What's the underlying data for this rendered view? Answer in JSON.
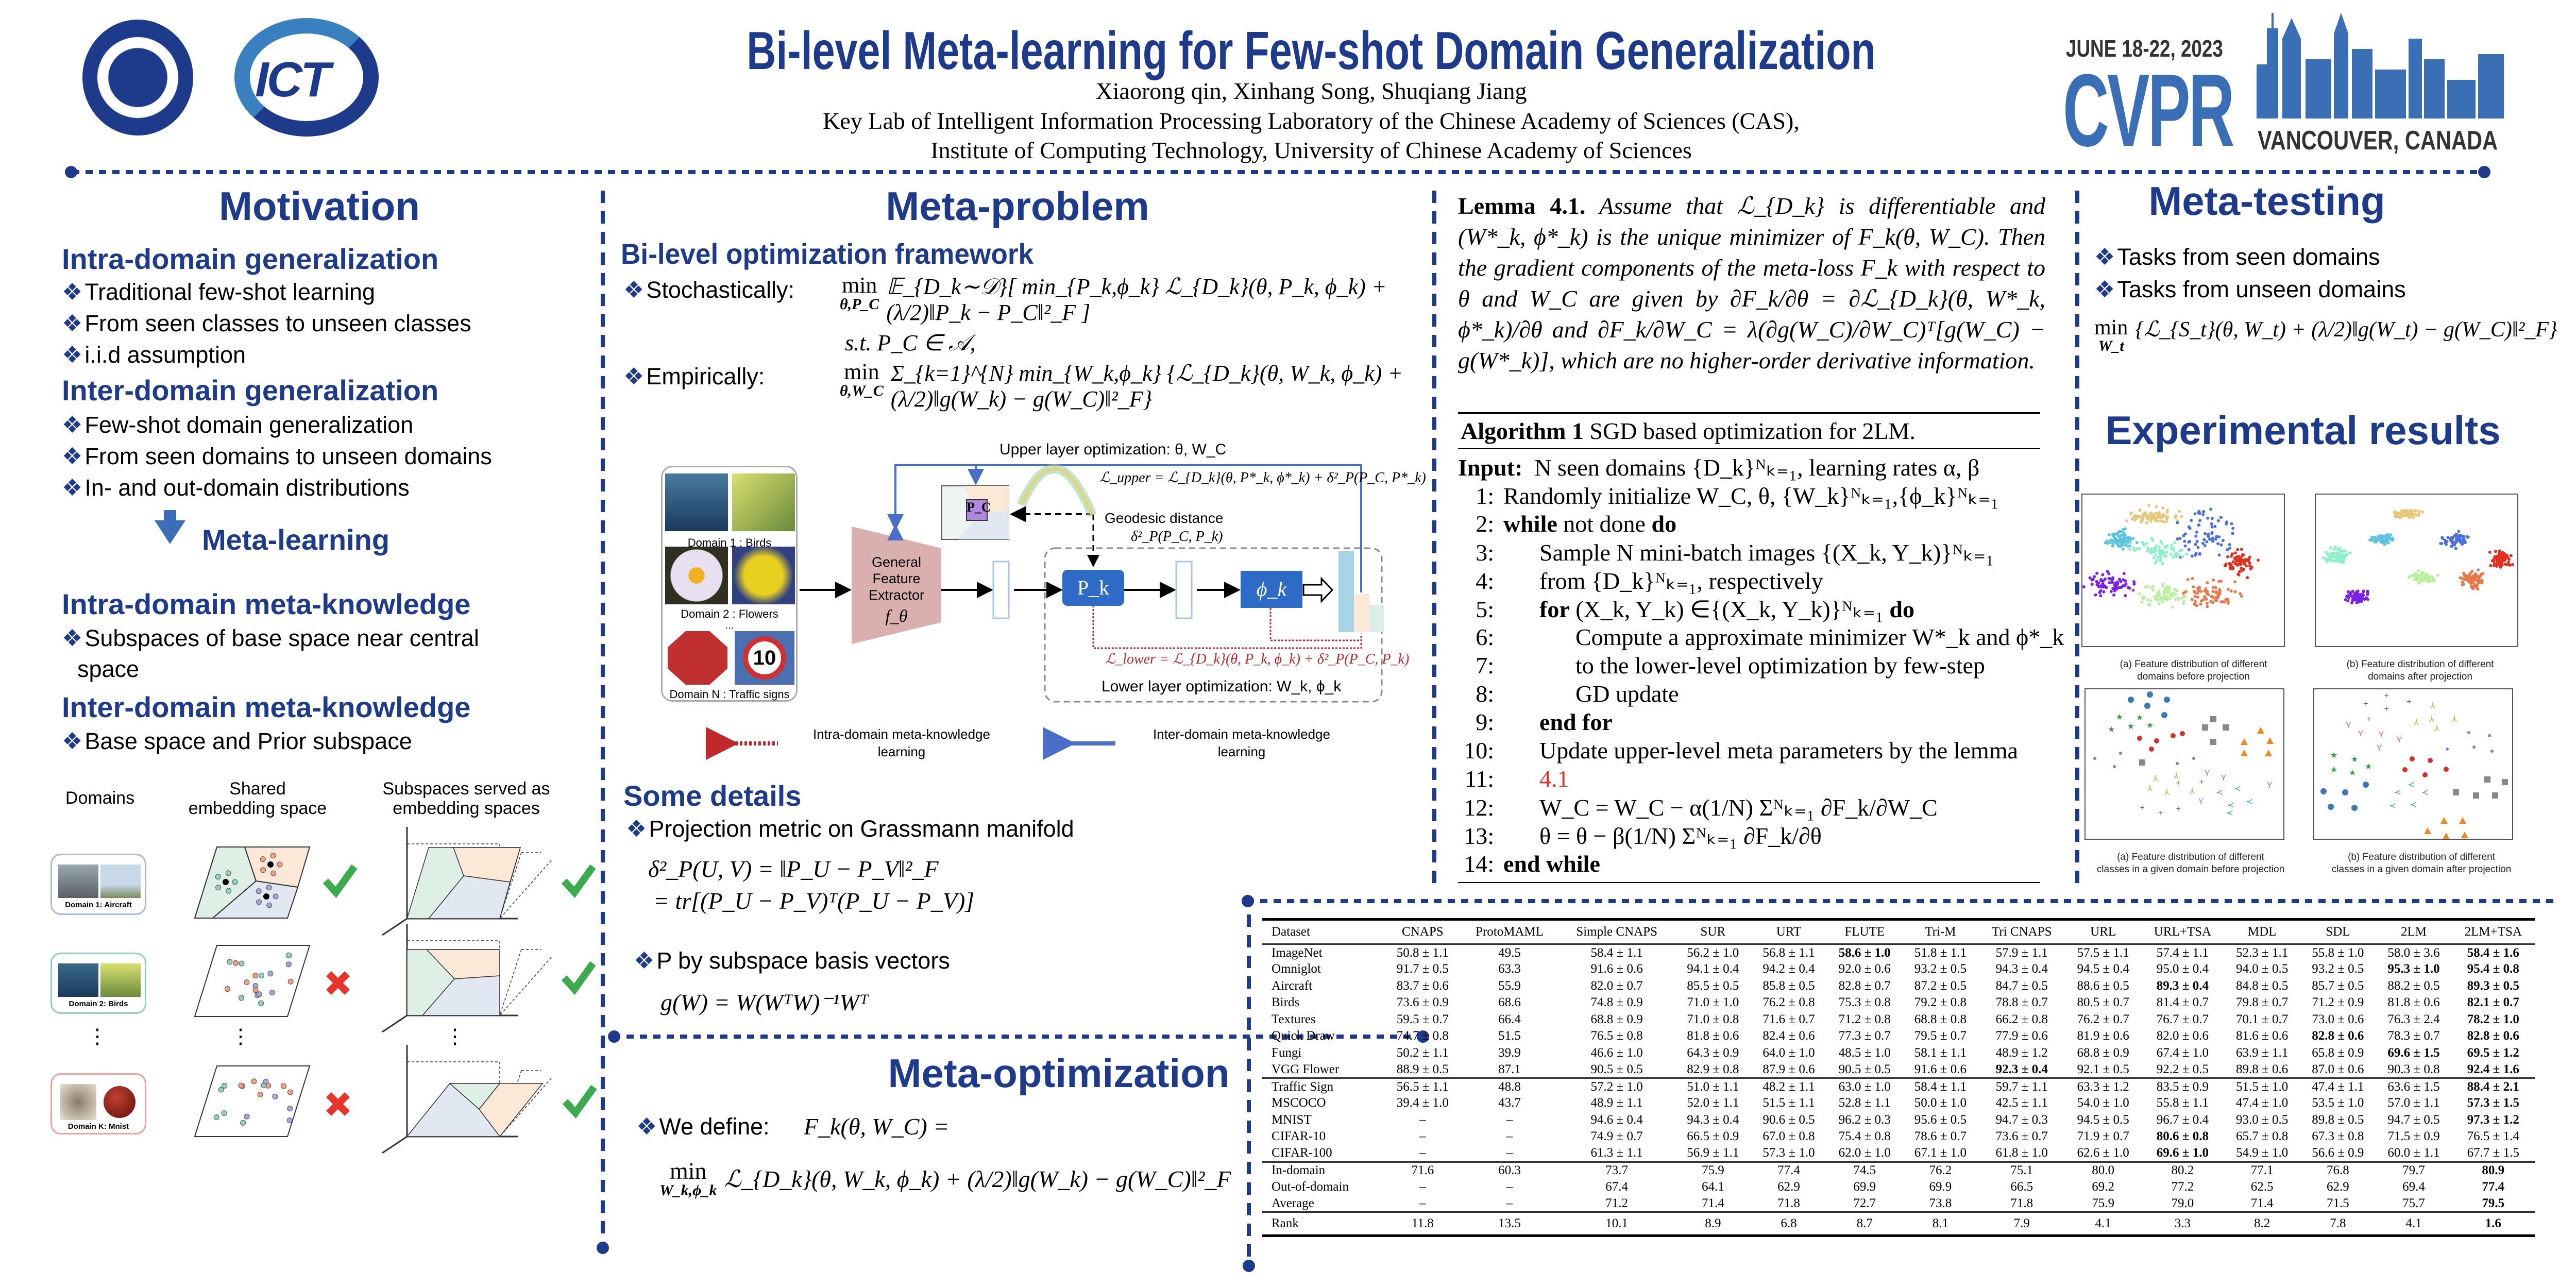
{
  "header": {
    "title": "Bi-level Meta-learning for Few-shot Domain Generalization",
    "authors": "Xiaorong qin, Xinhang Song, Shuqiang Jiang",
    "affiliation_1": "Key Lab of Intelligent Information Processing Laboratory of the Chinese Academy of Sciences (CAS),",
    "affiliation_2": "Institute of Computing Technology, University of Chinese Academy of Sciences",
    "logo_left_1": "Chinese Academy of Sciences",
    "logo_left_2": "ICT",
    "conference": {
      "dates": "JUNE 18-22, 2023",
      "name": "CVPR",
      "location": "VANCOUVER, CANADA",
      "color": "#3a6fb5"
    }
  },
  "colors": {
    "heading": "#1e3a8a",
    "check": "#3daa4d",
    "cross": "#e8352b",
    "pk_box": "#2e6bc6",
    "extractor": "#d9b0ad",
    "lower_loss": "#c0282b"
  },
  "motivation": {
    "title": "Motivation",
    "intra_title": "Intra-domain generalization",
    "intra_items": [
      "Traditional few-shot learning",
      "From seen classes to unseen classes",
      "i.i.d assumption"
    ],
    "inter_title": "Inter-domain generalization",
    "inter_items": [
      "Few-shot domain generalization",
      "From seen domains to unseen domains",
      "In- and out-domain distributions"
    ],
    "arrow_label": "Meta-learning",
    "intra_know_title": "Intra-domain meta-knowledge",
    "intra_know_items": [
      "Subspaces of base space near central",
      "space"
    ],
    "inter_know_title": "Inter-domain meta-knowledge",
    "inter_know_items": [
      "Base space and Prior subspace"
    ],
    "figure": {
      "col_domains": "Domains",
      "col_shared_1": "Shared",
      "col_shared_2": "embedding space",
      "col_sub_1": "Subspaces served as",
      "col_sub_2": "embedding spaces",
      "domains": [
        "Domain 1: Aircraft",
        "Domain 2: Birds",
        "Domain K: Mnist"
      ],
      "shared_result": [
        "check",
        "cross",
        "cross"
      ],
      "subspace_result": [
        "check",
        "check",
        "check"
      ],
      "ellipsis": "⋮"
    }
  },
  "meta_problem": {
    "title": "Meta-problem",
    "framework_title": "Bi-level optimization framework",
    "stochastic_label": "Stochastically:",
    "stochastic": {
      "min_sub": "θ,P_C",
      "body": "𝔼_{D_k∼𝒟}[ min_{P_k,ϕ_k} ℒ_{D_k}(θ, P_k, ϕ_k) + (λ/2)‖P_k − P_C‖²_F ]"
    },
    "constraint": "s.t. P_C ∈ 𝒜,",
    "empirical_label": "Empirically:",
    "empirical": {
      "min_sub": "θ,W_C",
      "body": "Σ_{k=1}^{N} min_{W_k,ϕ_k} {ℒ_{D_k}(θ, W_k, ϕ_k) + (λ/2)‖g(W_k) − g(W_C)‖²_F}"
    },
    "diagram": {
      "upper_label": "Upper layer optimization: θ, W_C",
      "domain_labels": [
        "Domain 1 : Birds",
        "Domain 2 : Flowers",
        "...",
        "Domain N : Traffic signs"
      ],
      "extractor_1": "General",
      "extractor_2": "Feature",
      "extractor_3": "Extractor",
      "extractor_sym": "f_θ",
      "pc": "P_C",
      "pk": "P_k",
      "phik": "ϕ_k",
      "upper_loss": "ℒ_upper = ℒ_{D_k}(θ, P*_k, ϕ*_k) + δ²_P(P_C, P*_k)",
      "geodesic_1": "Geodesic distance",
      "geodesic_2": "δ²_P(P_C, P_k)",
      "lower_loss": "ℒ_lower = ℒ_{D_k}(θ, P_k, ϕ_k) + δ²_P(P_C, P_k)",
      "lower_label": "Lower layer optimization: W_k, ϕ_k",
      "legend_intra_1": "Intra-domain meta-knowledge",
      "legend_intra_2": "learning",
      "legend_inter_1": "Inter-domain meta-knowledge",
      "legend_inter_2": "learning"
    },
    "details_title": "Some details",
    "projection_label": "Projection metric on Grassmann manifold",
    "projection_eq_1": "δ²_P(U, V) = ‖P_U − P_V‖²_F",
    "projection_eq_2": "= tr[(P_U − P_V)ᵀ(P_U − P_V)]",
    "basis_label": "P by subspace basis vectors",
    "basis_eq": "g(W) = W(WᵀW)⁻¹Wᵀ"
  },
  "meta_optimization": {
    "title": "Meta-optimization",
    "define_label": "We define:",
    "define_lhs": "F_k(θ, W_C) =",
    "define": {
      "min_sub": "W_k,ϕ_k",
      "body": "ℒ_{D_k}(θ, W_k, ϕ_k) + (λ/2)‖g(W_k) − g(W_C)‖²_F"
    }
  },
  "lemma": {
    "label": "Lemma 4.1.",
    "text": "Assume that ℒ_{D_k} is differentiable and (W*_k, ϕ*_k) is the unique minimizer of F_k(θ, W_C). Then the gradient components of the meta-loss F_k with respect to θ and W_C are given by ∂F_k/∂θ = ∂ℒ_{D_k}(θ, W*_k, ϕ*_k)/∂θ and ∂F_k/∂W_C = λ(∂g(W_C)/∂W_C)ᵀ[g(W_C) − g(W*_k)], which are no higher-order derivative information."
  },
  "algorithm": {
    "label": "Algorithm 1",
    "caption": "SGD based optimization for 2LM.",
    "lines": [
      {
        "num": "",
        "segs": [
          {
            "t": "Input:",
            "b": true
          },
          {
            "t": "  N seen domains {D_k}ᴺₖ₌₁, learning rates α, β"
          }
        ]
      },
      {
        "num": "1:",
        "segs": [
          {
            "t": "Randomly initialize W_C, θ, {W_k}ᴺₖ₌₁,{ϕ_k}ᴺₖ₌₁"
          }
        ]
      },
      {
        "num": "2:",
        "segs": [
          {
            "t": "while",
            "b": true
          },
          {
            "t": " not done "
          },
          {
            "t": "do",
            "b": true
          }
        ]
      },
      {
        "num": "3:",
        "segs": [
          {
            "t": "Sample N mini-batch images {(X_k, Y_k)}ᴺₖ₌₁"
          }
        ]
      },
      {
        "num": "4:",
        "segs": [
          {
            "t": "from {D_k}ᴺₖ₌₁, respectively"
          }
        ]
      },
      {
        "num": "5:",
        "segs": [
          {
            "t": "for",
            "b": true
          },
          {
            "t": " (X_k, Y_k) ∈{(X_k, Y_k)}ᴺₖ₌₁ "
          },
          {
            "t": "do",
            "b": true
          }
        ]
      },
      {
        "num": "6:",
        "segs": [
          {
            "t": "Compute a approximate minimizer W*_k and ϕ*_k"
          }
        ]
      },
      {
        "num": "7:",
        "segs": [
          {
            "t": "to the lower-level optimization by few-step"
          }
        ]
      },
      {
        "num": "8:",
        "segs": [
          {
            "t": "GD update"
          }
        ]
      },
      {
        "num": "9:",
        "segs": [
          {
            "t": "end for",
            "b": true
          }
        ]
      },
      {
        "num": "10:",
        "segs": [
          {
            "t": "Update upper-level meta parameters by the lemma"
          }
        ]
      },
      {
        "num": "11:",
        "segs": [
          {
            "t": "4.1",
            "r": true
          }
        ]
      },
      {
        "num": "12:",
        "segs": [
          {
            "t": "W_C = W_C − α(1/N) Σᴺₖ₌₁ ∂F_k/∂W_C"
          }
        ]
      },
      {
        "num": "13:",
        "segs": [
          {
            "t": "θ = θ − β(1/N) Σᴺₖ₌₁ ∂F_k/∂θ"
          }
        ]
      },
      {
        "num": "14:",
        "segs": [
          {
            "t": "end while",
            "b": true
          }
        ]
      }
    ]
  },
  "meta_testing": {
    "title": "Meta-testing",
    "items": [
      "Tasks from seen domains",
      "Tasks from unseen domains"
    ],
    "objective": {
      "min_sub": "W_t",
      "body": "{ℒ_{S_t}(θ, W_t) + (λ/2)‖g(W_t) − g(W_C)‖²_F}"
    }
  },
  "results": {
    "title": "Experimental results",
    "captions": [
      [
        "(a) Feature distribution of different",
        "domains before projection"
      ],
      [
        "(b) Feature distribution of different",
        "domains after projection"
      ],
      [
        "(a) Feature distribution of different",
        "classes in a given domain before projection"
      ],
      [
        "(b) Feature distribution of different",
        "classes in a given domain after projection"
      ]
    ],
    "domain_colors": [
      "#e8c77a",
      "#4a6fe0",
      "#5cc3e0",
      "#8ef0c8",
      "#e03020",
      "#7a20e8",
      "#b8f0a0",
      "#e87848"
    ]
  },
  "table": {
    "columns": [
      "Dataset",
      "CNAPS",
      "ProtoMAML",
      "Simple CNAPS",
      "SUR",
      "URT",
      "FLUTE",
      "Tri-M",
      "Tri CNAPS",
      "URL",
      "URL+TSA",
      "MDL",
      "SDL",
      "2LM",
      "2LM+TSA"
    ],
    "groups": [
      {
        "rows": [
          {
            "cells": [
              "ImageNet",
              "50.8 ± 1.1",
              "49.5",
              "58.4 ± 1.1",
              "56.2 ± 1.0",
              "56.8 ± 1.1",
              "58.6 ± 1.0",
              "51.8 ± 1.1",
              "57.9 ± 1.1",
              "57.5 ± 1.1",
              "57.4 ± 1.1",
              "52.3 ± 1.1",
              "55.8 ± 1.0",
              "58.0 ± 3.6",
              "58.4 ± 1.6"
            ],
            "bold": [
              6,
              14
            ]
          },
          {
            "cells": [
              "Omniglot",
              "91.7 ± 0.5",
              "63.3",
              "91.6 ± 0.6",
              "94.1 ± 0.4",
              "94.2 ± 0.4",
              "92.0 ± 0.6",
              "93.2 ± 0.5",
              "94.3 ± 0.4",
              "94.5 ± 0.4",
              "95.0 ± 0.4",
              "94.0 ± 0.5",
              "93.2 ± 0.5",
              "95.3 ± 1.0",
              "95.4 ± 0.8"
            ],
            "bold": [
              13,
              14
            ]
          },
          {
            "cells": [
              "Aircraft",
              "83.7 ± 0.6",
              "55.9",
              "82.0 ± 0.7",
              "85.5 ± 0.5",
              "85.8 ± 0.5",
              "82.8 ± 0.7",
              "87.2 ± 0.5",
              "84.7 ± 0.5",
              "88.6 ± 0.5",
              "89.3 ± 0.4",
              "84.8 ± 0.5",
              "85.7 ± 0.5",
              "88.2 ± 0.5",
              "89.3 ± 0.5"
            ],
            "bold": [
              10,
              14
            ]
          },
          {
            "cells": [
              "Birds",
              "73.6 ± 0.9",
              "68.6",
              "74.8 ± 0.9",
              "71.0 ± 1.0",
              "76.2 ± 0.8",
              "75.3 ± 0.8",
              "79.2 ± 0.8",
              "78.8 ± 0.7",
              "80.5 ± 0.7",
              "81.4 ± 0.7",
              "79.8 ± 0.7",
              "71.2 ± 0.9",
              "81.8 ± 0.6",
              "82.1 ± 0.7"
            ],
            "bold": [
              14
            ]
          },
          {
            "cells": [
              "Textures",
              "59.5 ± 0.7",
              "66.4",
              "68.8 ± 0.9",
              "71.0 ± 0.8",
              "71.6 ± 0.7",
              "71.2 ± 0.8",
              "68.8 ± 0.8",
              "66.2 ± 0.8",
              "76.2 ± 0.7",
              "76.7 ± 0.7",
              "70.1 ± 0.7",
              "73.0 ± 0.6",
              "76.3 ± 2.4",
              "78.2 ± 1.0"
            ],
            "bold": [
              14
            ]
          },
          {
            "cells": [
              "Quick Draw",
              "74.7 ± 0.8",
              "51.5",
              "76.5 ± 0.8",
              "81.8 ± 0.6",
              "82.4 ± 0.6",
              "77.3 ± 0.7",
              "79.5 ± 0.7",
              "77.9 ± 0.6",
              "81.9 ± 0.6",
              "82.0 ± 0.6",
              "81.6 ± 0.6",
              "82.8 ± 0.6",
              "78.3 ± 0.7",
              "82.8 ± 0.6"
            ],
            "bold": [
              12,
              14
            ]
          },
          {
            "cells": [
              "Fungi",
              "50.2 ± 1.1",
              "39.9",
              "46.6 ± 1.0",
              "64.3 ± 0.9",
              "64.0 ± 1.0",
              "48.5 ± 1.0",
              "58.1 ± 1.1",
              "48.9 ± 1.2",
              "68.8 ± 0.9",
              "67.4 ± 1.0",
              "63.9 ± 1.1",
              "65.8 ± 0.9",
              "69.6 ± 1.5",
              "69.5 ± 1.2"
            ],
            "bold": [
              13,
              14
            ]
          },
          {
            "cells": [
              "VGG Flower",
              "88.9 ± 0.5",
              "87.1",
              "90.5 ± 0.5",
              "82.9 ± 0.8",
              "87.9 ± 0.6",
              "90.5 ± 0.5",
              "91.6 ± 0.6",
              "92.3 ± 0.4",
              "92.1 ± 0.5",
              "92.2 ± 0.5",
              "89.8 ± 0.6",
              "87.0 ± 0.6",
              "90.3 ± 0.8",
              "92.4 ± 1.6"
            ],
            "bold": [
              8,
              14
            ]
          }
        ]
      },
      {
        "rows": [
          {
            "cells": [
              "Traffic Sign",
              "56.5 ± 1.1",
              "48.8",
              "57.2 ± 1.0",
              "51.0 ± 1.1",
              "48.2 ± 1.1",
              "63.0 ± 1.0",
              "58.4 ± 1.1",
              "59.7 ± 1.1",
              "63.3 ± 1.2",
              "83.5 ± 0.9",
              "51.5 ± 1.0",
              "47.4 ± 1.1",
              "63.6 ± 1.5",
              "88.4 ± 2.1"
            ],
            "bold": [
              14
            ]
          },
          {
            "cells": [
              "MSCOCO",
              "39.4 ± 1.0",
              "43.7",
              "48.9 ± 1.1",
              "52.0 ± 1.1",
              "51.5 ± 1.1",
              "52.8 ± 1.1",
              "50.0 ± 1.0",
              "42.5 ± 1.1",
              "54.0 ± 1.0",
              "55.8 ± 1.1",
              "47.4 ± 1.0",
              "53.5 ± 1.0",
              "57.0 ± 1.1",
              "57.3 ± 1.5"
            ],
            "bold": [
              14
            ]
          },
          {
            "cells": [
              "MNIST",
              "–",
              "–",
              "94.6 ± 0.4",
              "94.3 ± 0.4",
              "90.6 ± 0.5",
              "96.2 ± 0.3",
              "95.6 ± 0.5",
              "94.7 ± 0.3",
              "94.5 ± 0.5",
              "96.7 ± 0.4",
              "93.0 ± 0.5",
              "89.8 ± 0.5",
              "94.7 ± 0.5",
              "97.3 ± 1.2"
            ],
            "bold": [
              14
            ]
          },
          {
            "cells": [
              "CIFAR-10",
              "–",
              "–",
              "74.9 ± 0.7",
              "66.5 ± 0.9",
              "67.0 ± 0.8",
              "75.4 ± 0.8",
              "78.6 ± 0.7",
              "73.6 ± 0.7",
              "71.9 ± 0.7",
              "80.6 ± 0.8",
              "65.7 ± 0.8",
              "67.3 ± 0.8",
              "71.5 ± 0.9",
              "76.5 ± 1.4"
            ],
            "bold": [
              10
            ]
          },
          {
            "cells": [
              "CIFAR-100",
              "–",
              "–",
              "61.3 ± 1.1",
              "56.9 ± 1.1",
              "57.3 ± 1.0",
              "62.0 ± 1.0",
              "67.1 ± 1.0",
              "61.8 ± 1.0",
              "62.6 ± 1.0",
              "69.6 ± 1.0",
              "54.9 ± 1.0",
              "56.6 ± 0.9",
              "60.0 ± 1.1",
              "67.7 ± 1.5"
            ],
            "bold": [
              10
            ]
          }
        ]
      },
      {
        "rows": [
          {
            "cells": [
              "In-domain",
              "71.6",
              "60.3",
              "73.7",
              "75.9",
              "77.4",
              "74.5",
              "76.2",
              "75.1",
              "80.0",
              "80.2",
              "77.1",
              "76.8",
              "79.7",
              "80.9"
            ],
            "bold": [
              14
            ]
          },
          {
            "cells": [
              "Out-of-domain",
              "–",
              "–",
              "67.4",
              "64.1",
              "62.9",
              "69.9",
              "69.9",
              "66.5",
              "69.2",
              "77.2",
              "62.5",
              "62.9",
              "69.4",
              "77.4"
            ],
            "bold": [
              14
            ]
          },
          {
            "cells": [
              "Average",
              "–",
              "–",
              "71.2",
              "71.4",
              "71.8",
              "72.7",
              "73.8",
              "71.8",
              "75.9",
              "79.0",
              "71.4",
              "71.5",
              "75.7",
              "79.5"
            ],
            "bold": [
              14
            ]
          }
        ]
      },
      {
        "rows": [
          {
            "cells": [
              "Rank",
              "11.8",
              "13.5",
              "10.1",
              "8.9",
              "6.8",
              "8.7",
              "8.1",
              "7.9",
              "4.1",
              "3.3",
              "8.2",
              "7.8",
              "4.1",
              "1.6"
            ],
            "bold": [
              14
            ]
          }
        ]
      }
    ]
  }
}
